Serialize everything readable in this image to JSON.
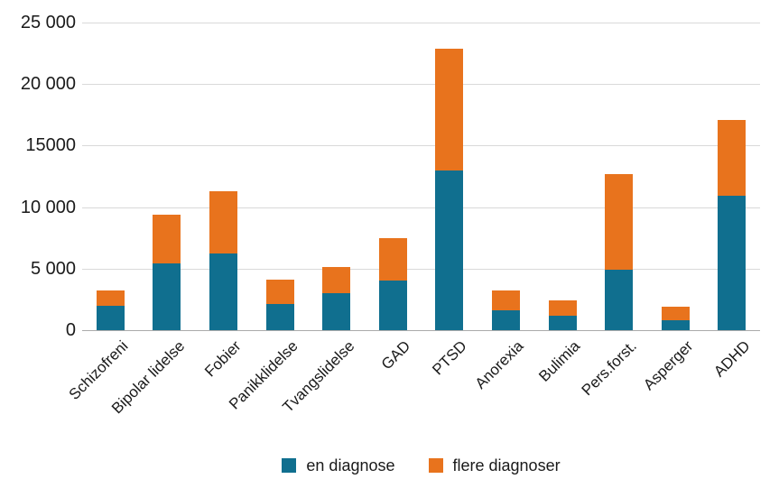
{
  "chart_data": {
    "type": "bar",
    "stacked": true,
    "title": "",
    "xlabel": "",
    "ylabel": "",
    "categories": [
      "Schizofreni",
      "Bipolar lidelse",
      "Fobier",
      "Panikklidelse",
      "Tvangslidelse",
      "GAD",
      "PTSD",
      "Anorexia",
      "Bulimia",
      "Pers.forst.",
      "Asperger",
      "ADHD"
    ],
    "series": [
      {
        "name": "en diagnose",
        "color": "#106f8f",
        "values": [
          2000,
          5400,
          6200,
          2100,
          3000,
          4000,
          13000,
          1600,
          1200,
          4900,
          800,
          10900
        ]
      },
      {
        "name": "flere diagnoser",
        "color": "#e8731d",
        "values": [
          1200,
          4000,
          5100,
          2000,
          2100,
          3500,
          9900,
          1600,
          1200,
          7800,
          1100,
          6200
        ]
      }
    ],
    "ylim": [
      0,
      25000
    ],
    "yticks": [
      0,
      5000,
      10000,
      15000,
      20000,
      25000
    ],
    "ytick_labels": [
      "0",
      "5 000",
      "10 000",
      "15000",
      "20 000",
      "25 000"
    ],
    "grid": true,
    "legend_position": "bottom"
  },
  "colors": {
    "gridline": "#d9d9d9",
    "axis_line": "#ababab",
    "text": "#1a1a1a",
    "background": "#ffffff"
  }
}
